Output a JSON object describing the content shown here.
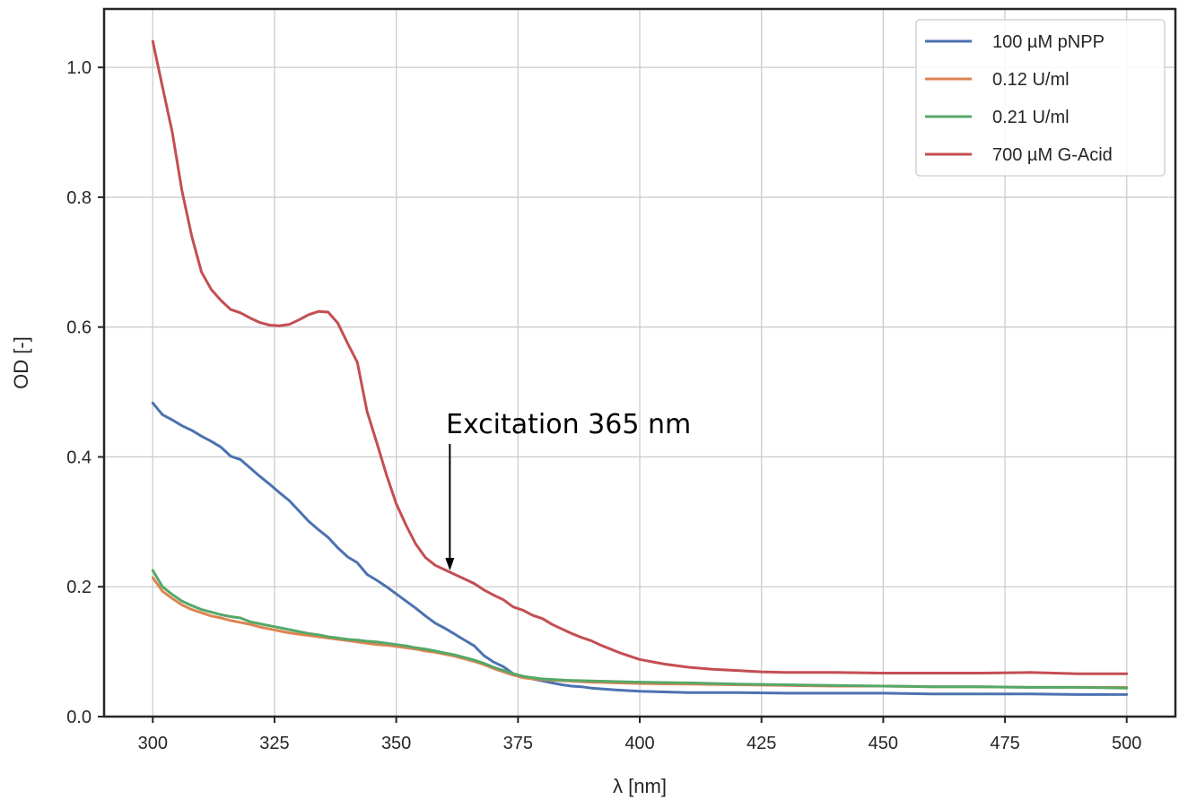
{
  "chart_data": {
    "type": "line",
    "xlabel": "λ [nm]",
    "ylabel": "OD [-]",
    "xlim": [
      290,
      510
    ],
    "ylim": [
      0,
      1.09
    ],
    "xticks": [
      300,
      325,
      350,
      375,
      400,
      425,
      450,
      475,
      500
    ],
    "xtick_labels": [
      "300",
      "325",
      "350",
      "375",
      "400",
      "425",
      "450",
      "475",
      "500"
    ],
    "yticks": [
      0.0,
      0.2,
      0.4,
      0.6,
      0.8,
      1.0
    ],
    "ytick_labels": [
      "0.0",
      "0.2",
      "0.4",
      "0.6",
      "0.8",
      "1.0"
    ],
    "grid": true,
    "legend_position": "top-right",
    "annotation": {
      "text": "Excitation 365 nm",
      "x": 361,
      "y_from": 0.42,
      "y_to": 0.225
    },
    "series": [
      {
        "name": "100 µM pNPP",
        "color": "#4c72b0",
        "x": [
          300,
          302,
          304,
          306,
          308,
          310,
          312,
          314,
          316,
          318,
          320,
          322,
          324,
          326,
          328,
          330,
          332,
          334,
          336,
          338,
          340,
          342,
          344,
          346,
          348,
          350,
          352,
          354,
          356,
          358,
          360,
          362,
          364,
          366,
          368,
          370,
          372,
          374,
          376,
          378,
          380,
          382,
          384,
          386,
          388,
          390,
          395,
          400,
          405,
          410,
          420,
          430,
          440,
          450,
          460,
          470,
          480,
          490,
          500
        ],
        "y": [
          0.483,
          0.465,
          0.457,
          0.448,
          0.441,
          0.432,
          0.424,
          0.415,
          0.401,
          0.396,
          0.383,
          0.37,
          0.358,
          0.345,
          0.333,
          0.317,
          0.301,
          0.288,
          0.276,
          0.26,
          0.246,
          0.237,
          0.219,
          0.21,
          0.2,
          0.189,
          0.178,
          0.167,
          0.155,
          0.144,
          0.136,
          0.127,
          0.118,
          0.109,
          0.094,
          0.084,
          0.077,
          0.066,
          0.062,
          0.058,
          0.055,
          0.052,
          0.049,
          0.047,
          0.046,
          0.044,
          0.041,
          0.039,
          0.038,
          0.037,
          0.037,
          0.036,
          0.036,
          0.036,
          0.035,
          0.035,
          0.035,
          0.034,
          0.034
        ]
      },
      {
        "name": "0.12 U/ml",
        "color": "#dd8452",
        "x": [
          300,
          302,
          304,
          306,
          308,
          310,
          312,
          314,
          316,
          318,
          320,
          322,
          324,
          326,
          328,
          330,
          332,
          334,
          336,
          338,
          340,
          342,
          344,
          346,
          348,
          350,
          352,
          354,
          356,
          358,
          360,
          362,
          364,
          366,
          368,
          370,
          372,
          374,
          376,
          378,
          380,
          385,
          390,
          400,
          410,
          420,
          430,
          440,
          450,
          460,
          470,
          480,
          490,
          500
        ],
        "y": [
          0.214,
          0.193,
          0.182,
          0.172,
          0.165,
          0.16,
          0.155,
          0.152,
          0.148,
          0.145,
          0.142,
          0.138,
          0.135,
          0.132,
          0.129,
          0.127,
          0.125,
          0.123,
          0.121,
          0.119,
          0.117,
          0.115,
          0.113,
          0.111,
          0.11,
          0.108,
          0.106,
          0.104,
          0.101,
          0.099,
          0.096,
          0.093,
          0.089,
          0.085,
          0.08,
          0.074,
          0.069,
          0.064,
          0.06,
          0.058,
          0.057,
          0.055,
          0.053,
          0.051,
          0.05,
          0.049,
          0.048,
          0.047,
          0.047,
          0.046,
          0.046,
          0.045,
          0.045,
          0.045
        ]
      },
      {
        "name": "0.21 U/ml",
        "color": "#55a868",
        "x": [
          300,
          302,
          304,
          306,
          308,
          310,
          312,
          314,
          316,
          318,
          320,
          322,
          324,
          326,
          328,
          330,
          332,
          334,
          336,
          338,
          340,
          342,
          344,
          346,
          348,
          350,
          352,
          354,
          356,
          358,
          360,
          362,
          364,
          366,
          368,
          370,
          372,
          374,
          376,
          378,
          380,
          385,
          390,
          400,
          410,
          420,
          430,
          440,
          450,
          460,
          470,
          480,
          490,
          500
        ],
        "y": [
          0.225,
          0.2,
          0.188,
          0.178,
          0.171,
          0.165,
          0.161,
          0.157,
          0.154,
          0.152,
          0.146,
          0.143,
          0.14,
          0.137,
          0.134,
          0.131,
          0.128,
          0.126,
          0.123,
          0.121,
          0.119,
          0.118,
          0.116,
          0.115,
          0.113,
          0.111,
          0.109,
          0.106,
          0.104,
          0.101,
          0.098,
          0.095,
          0.091,
          0.087,
          0.082,
          0.076,
          0.071,
          0.066,
          0.062,
          0.06,
          0.058,
          0.056,
          0.055,
          0.053,
          0.052,
          0.05,
          0.049,
          0.048,
          0.047,
          0.046,
          0.046,
          0.045,
          0.045,
          0.044
        ]
      },
      {
        "name": "700 µM G-Acid",
        "color": "#c44e52",
        "x": [
          300,
          302,
          304,
          306,
          308,
          310,
          312,
          314,
          316,
          318,
          320,
          322,
          324,
          326,
          328,
          330,
          332,
          334,
          336,
          338,
          340,
          342,
          344,
          346,
          348,
          350,
          352,
          354,
          356,
          358,
          360,
          362,
          364,
          366,
          368,
          370,
          372,
          374,
          376,
          378,
          380,
          382,
          384,
          386,
          388,
          390,
          392,
          394,
          396,
          398,
          400,
          405,
          410,
          415,
          420,
          425,
          430,
          440,
          450,
          460,
          470,
          480,
          490,
          500
        ],
        "y": [
          1.04,
          0.97,
          0.9,
          0.81,
          0.74,
          0.685,
          0.658,
          0.641,
          0.627,
          0.622,
          0.614,
          0.607,
          0.603,
          0.602,
          0.604,
          0.611,
          0.619,
          0.624,
          0.623,
          0.606,
          0.575,
          0.546,
          0.47,
          0.422,
          0.372,
          0.328,
          0.295,
          0.266,
          0.245,
          0.233,
          0.226,
          0.219,
          0.212,
          0.205,
          0.195,
          0.187,
          0.18,
          0.169,
          0.164,
          0.156,
          0.151,
          0.142,
          0.135,
          0.128,
          0.122,
          0.117,
          0.11,
          0.104,
          0.098,
          0.093,
          0.088,
          0.081,
          0.076,
          0.073,
          0.071,
          0.069,
          0.068,
          0.068,
          0.067,
          0.067,
          0.067,
          0.068,
          0.066,
          0.066
        ]
      }
    ]
  }
}
